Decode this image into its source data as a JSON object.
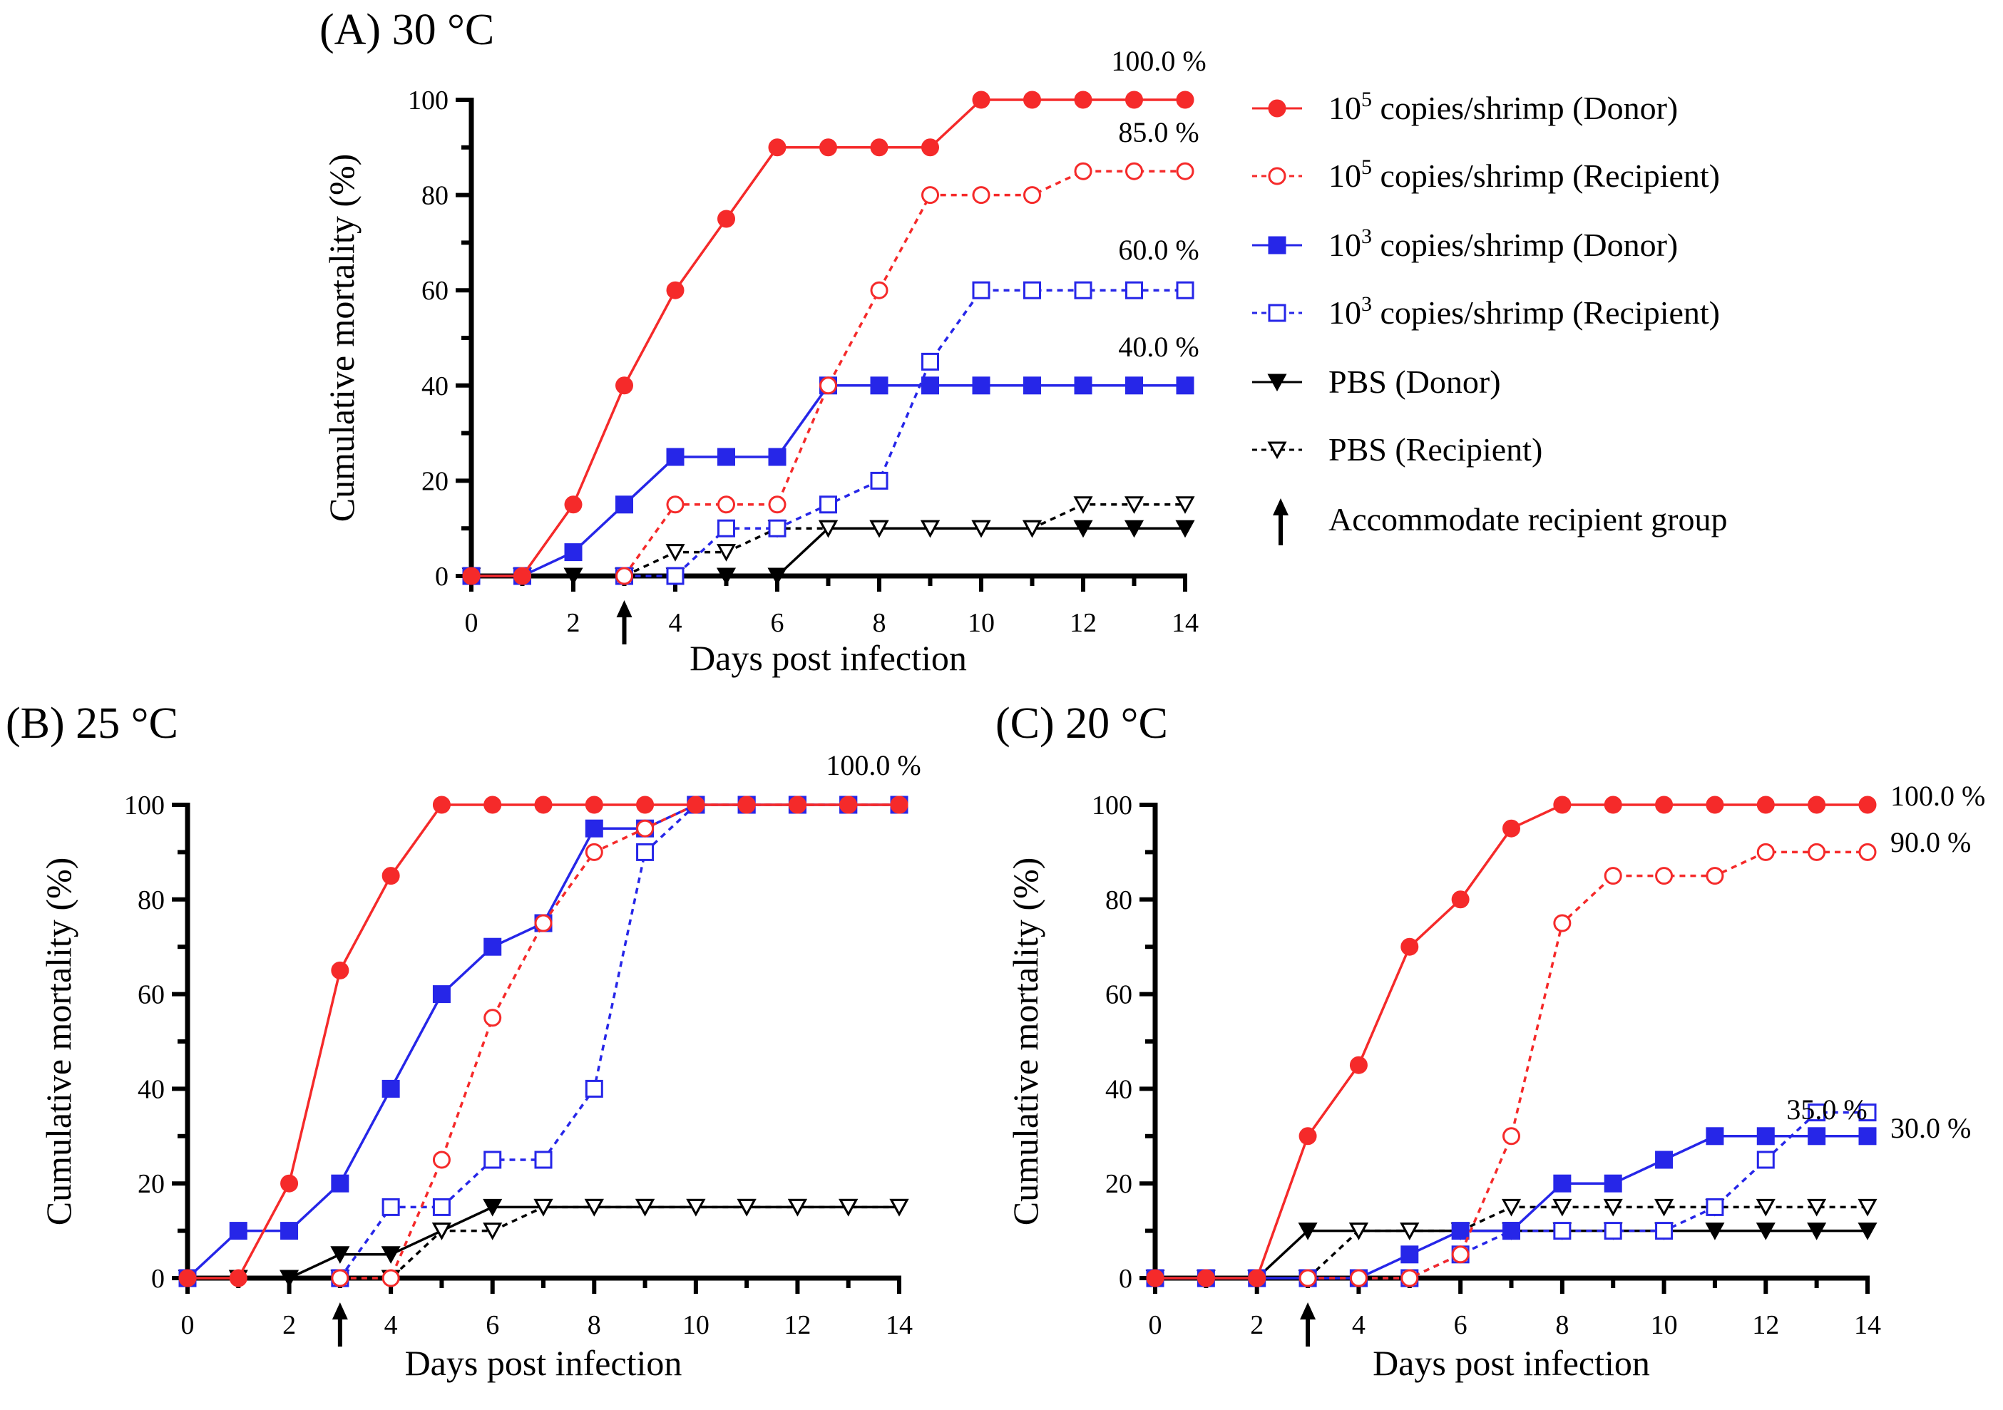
{
  "colors": {
    "red": "#f52a2a",
    "blue": "#2626e8",
    "black": "#000000"
  },
  "legend": {
    "items": [
      {
        "base": "10",
        "sup": "5",
        "rest": " copies/shrimp (Donor)",
        "series": "red_donor"
      },
      {
        "base": "10",
        "sup": "5",
        "rest": " copies/shrimp (Recipient)",
        "series": "red_recipient"
      },
      {
        "base": "10",
        "sup": "3",
        "rest": " copies/shrimp (Donor)",
        "series": "blue_donor"
      },
      {
        "base": "10",
        "sup": "3",
        "rest": " copies/shrimp (Recipient)",
        "series": "blue_recipient"
      },
      {
        "base": "PBS (Donor)",
        "sup": "",
        "rest": "",
        "series": "pbs_donor"
      },
      {
        "base": "PBS (Recipient)",
        "sup": "",
        "rest": "",
        "series": "pbs_recipient"
      },
      {
        "base": "Accommodate recipient group",
        "sup": "",
        "rest": "",
        "series": "arrow"
      }
    ]
  },
  "chart_data": [
    {
      "type": "line",
      "title": "(A) 30 °C",
      "xlabel": "Days post infection",
      "ylabel": "Cumulative mortality (%)",
      "xlim": [
        0,
        14
      ],
      "ylim": [
        0,
        100
      ],
      "xticks": [
        0,
        2,
        4,
        6,
        8,
        10,
        12,
        14
      ],
      "yticks": [
        0,
        20,
        40,
        60,
        80,
        100
      ],
      "arrow_day": 3,
      "legend": "right",
      "series": {
        "red_donor": {
          "x": [
            0,
            1,
            2,
            3,
            4,
            5,
            6,
            7,
            8,
            9,
            10,
            11,
            12,
            13,
            14
          ],
          "y": [
            0,
            0,
            15,
            40,
            60,
            75,
            90,
            90,
            90,
            90,
            100,
            100,
            100,
            100,
            100
          ]
        },
        "red_recipient": {
          "x": [
            3,
            4,
            5,
            6,
            7,
            8,
            9,
            10,
            11,
            12,
            13,
            14
          ],
          "y": [
            0,
            15,
            15,
            15,
            40,
            60,
            80,
            80,
            80,
            85,
            85,
            85
          ]
        },
        "blue_donor": {
          "x": [
            0,
            1,
            2,
            3,
            4,
            5,
            6,
            7,
            8,
            9,
            10,
            11,
            12,
            13,
            14
          ],
          "y": [
            0,
            0,
            5,
            15,
            25,
            25,
            25,
            40,
            40,
            40,
            40,
            40,
            40,
            40,
            40
          ]
        },
        "blue_recipient": {
          "x": [
            3,
            4,
            5,
            6,
            7,
            8,
            9,
            10,
            11,
            12,
            13,
            14
          ],
          "y": [
            0,
            0,
            10,
            10,
            15,
            20,
            45,
            60,
            60,
            60,
            60,
            60
          ]
        },
        "pbs_donor": {
          "x": [
            0,
            1,
            2,
            3,
            4,
            5,
            6,
            7,
            8,
            9,
            10,
            11,
            12,
            13,
            14
          ],
          "y": [
            0,
            0,
            0,
            0,
            0,
            0,
            0,
            10,
            10,
            10,
            10,
            10,
            10,
            10,
            10
          ]
        },
        "pbs_recipient": {
          "x": [
            3,
            4,
            5,
            6,
            7,
            8,
            9,
            10,
            11,
            12,
            13,
            14
          ],
          "y": [
            0,
            5,
            5,
            10,
            10,
            10,
            10,
            10,
            10,
            15,
            15,
            15
          ]
        }
      },
      "annotations": [
        "100.0 %",
        "85.0 %",
        "60.0 %",
        "40.0 %"
      ]
    },
    {
      "type": "line",
      "title": "(B) 25 °C",
      "xlabel": "Days post infection",
      "ylabel": "Cumulative mortality (%)",
      "xlim": [
        0,
        14
      ],
      "ylim": [
        0,
        100
      ],
      "xticks": [
        0,
        2,
        4,
        6,
        8,
        10,
        12,
        14
      ],
      "yticks": [
        0,
        20,
        40,
        60,
        80,
        100
      ],
      "arrow_day": 3,
      "series": {
        "red_donor": {
          "x": [
            0,
            1,
            2,
            3,
            4,
            5,
            6,
            7,
            8,
            9,
            10,
            11,
            12,
            13,
            14
          ],
          "y": [
            0,
            0,
            20,
            65,
            85,
            100,
            100,
            100,
            100,
            100,
            100,
            100,
            100,
            100,
            100
          ]
        },
        "red_recipient": {
          "x": [
            3,
            4,
            5,
            6,
            7,
            8,
            9,
            10,
            11,
            12,
            13,
            14
          ],
          "y": [
            0,
            0,
            25,
            55,
            75,
            90,
            95,
            100,
            100,
            100,
            100,
            100
          ]
        },
        "blue_donor": {
          "x": [
            0,
            1,
            2,
            3,
            4,
            5,
            6,
            7,
            8,
            9,
            10,
            11,
            12,
            13,
            14
          ],
          "y": [
            0,
            10,
            10,
            20,
            40,
            60,
            70,
            75,
            95,
            95,
            100,
            100,
            100,
            100,
            100
          ]
        },
        "blue_recipient": {
          "x": [
            3,
            4,
            5,
            6,
            7,
            8,
            9,
            10,
            11,
            12,
            13,
            14
          ],
          "y": [
            0,
            15,
            15,
            25,
            25,
            40,
            90,
            100,
            100,
            100,
            100,
            100
          ]
        },
        "pbs_donor": {
          "x": [
            0,
            1,
            2,
            3,
            4,
            5,
            6,
            7,
            8,
            9,
            10,
            11,
            12,
            13,
            14
          ],
          "y": [
            0,
            0,
            0,
            5,
            5,
            10,
            15,
            15,
            15,
            15,
            15,
            15,
            15,
            15,
            15
          ]
        },
        "pbs_recipient": {
          "x": [
            3,
            4,
            5,
            6,
            7,
            8,
            9,
            10,
            11,
            12,
            13,
            14
          ],
          "y": [
            0,
            0,
            10,
            10,
            15,
            15,
            15,
            15,
            15,
            15,
            15,
            15
          ]
        }
      },
      "annotations": [
        "100.0 %"
      ]
    },
    {
      "type": "line",
      "title": "(C) 20 °C",
      "xlabel": "Days post infection",
      "ylabel": "Cumulative mortality (%)",
      "xlim": [
        0,
        14
      ],
      "ylim": [
        0,
        100
      ],
      "xticks": [
        0,
        2,
        4,
        6,
        8,
        10,
        12,
        14
      ],
      "yticks": [
        0,
        20,
        40,
        60,
        80,
        100
      ],
      "arrow_day": 3,
      "series": {
        "red_donor": {
          "x": [
            0,
            1,
            2,
            3,
            4,
            5,
            6,
            7,
            8,
            9,
            10,
            11,
            12,
            13,
            14
          ],
          "y": [
            0,
            0,
            0,
            30,
            45,
            70,
            80,
            95,
            100,
            100,
            100,
            100,
            100,
            100,
            100
          ]
        },
        "red_recipient": {
          "x": [
            3,
            4,
            5,
            6,
            7,
            8,
            9,
            10,
            11,
            12,
            13,
            14
          ],
          "y": [
            0,
            0,
            0,
            5,
            30,
            75,
            85,
            85,
            85,
            90,
            90,
            90
          ]
        },
        "blue_donor": {
          "x": [
            0,
            1,
            2,
            3,
            4,
            5,
            6,
            7,
            8,
            9,
            10,
            11,
            12,
            13,
            14
          ],
          "y": [
            0,
            0,
            0,
            0,
            0,
            5,
            10,
            10,
            20,
            20,
            25,
            30,
            30,
            30,
            30
          ]
        },
        "blue_recipient": {
          "x": [
            3,
            4,
            5,
            6,
            7,
            8,
            9,
            10,
            11,
            12,
            13,
            14
          ],
          "y": [
            0,
            0,
            0,
            5,
            10,
            10,
            10,
            10,
            15,
            25,
            35,
            35
          ]
        },
        "pbs_donor": {
          "x": [
            0,
            1,
            2,
            3,
            4,
            5,
            6,
            7,
            8,
            9,
            10,
            11,
            12,
            13,
            14
          ],
          "y": [
            0,
            0,
            0,
            10,
            10,
            10,
            10,
            10,
            10,
            10,
            10,
            10,
            10,
            10,
            10
          ]
        },
        "pbs_recipient": {
          "x": [
            3,
            4,
            5,
            6,
            7,
            8,
            9,
            10,
            11,
            12,
            13,
            14
          ],
          "y": [
            0,
            10,
            10,
            10,
            15,
            15,
            15,
            15,
            15,
            15,
            15,
            15
          ]
        }
      },
      "annotations": [
        "100.0 %",
        "90.0 %",
        "35.0 %",
        "30.0 %"
      ]
    }
  ]
}
